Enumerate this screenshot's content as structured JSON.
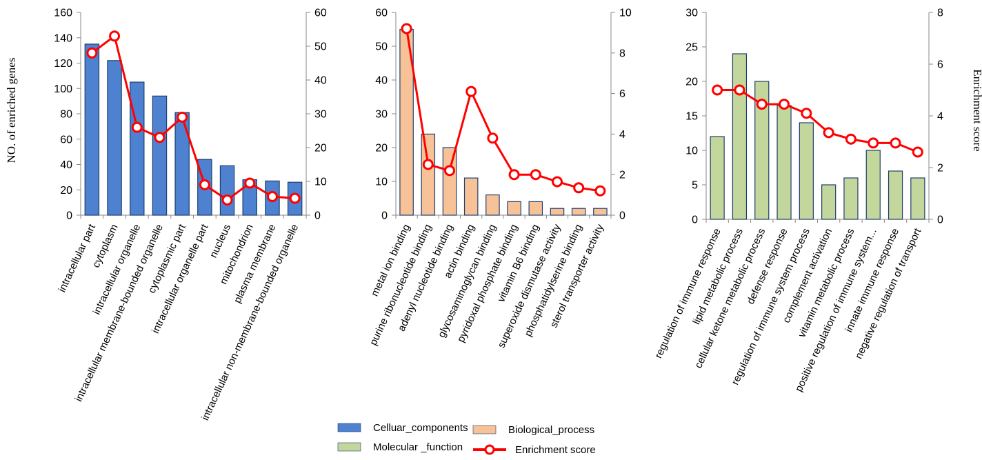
{
  "figure": {
    "ylabel_left": "NO. of enriched  genes",
    "ylabel_right": "Enrichment score"
  },
  "legend": [
    {
      "label": "Celluar_components",
      "kind": "bar",
      "color": "#4e81d0",
      "stroke": "#1f3f6f"
    },
    {
      "label": "Biological_process",
      "kind": "bar",
      "color": "#f8c298",
      "stroke": "#1f3f6f"
    },
    {
      "label": "Molecular _function",
      "kind": "bar",
      "color": "#c3d69b",
      "stroke": "#1f3f6f"
    },
    {
      "label": "Enrichment  score",
      "kind": "line",
      "color": "#ff0000"
    }
  ],
  "chart_data": [
    {
      "type": "bar",
      "series_name": "Celluar_components",
      "bar_color": "#4e81d0",
      "categories": [
        "intracellular part",
        "cytoplasm",
        "intracellular organelle",
        "intracellular membrane-bounded organelle",
        "cytoplasmic part",
        "intracellular organelle part",
        "nucleus",
        "mitochondrion",
        "plasma membrane",
        "intracellular non-membrane-bounded organelle"
      ],
      "values": [
        135,
        122,
        105,
        94,
        81,
        44,
        39,
        28,
        27,
        26
      ],
      "line_values": [
        48,
        53,
        26,
        23,
        29,
        9,
        4.5,
        9.5,
        5.5,
        5
      ],
      "ylim": [
        0,
        160
      ],
      "yticks": [
        0,
        20,
        40,
        60,
        80,
        100,
        120,
        140,
        160
      ],
      "y2lim": [
        0,
        60
      ],
      "y2ticks": [
        0,
        10,
        20,
        30,
        40,
        50,
        60
      ]
    },
    {
      "type": "bar",
      "series_name": "Biological_process",
      "bar_color": "#f8c298",
      "categories": [
        "metal ion binding",
        "purine ribonucleotide binding",
        "adenyl nucleotide binding",
        "actin binding",
        "glycosaminoglycan binding",
        "pyridoxal phosphate binding",
        "vitamin B6 binding",
        "superoxide dismutase activity",
        "phosphatidylserine binding",
        "sterol transporter activity"
      ],
      "values": [
        55,
        24,
        20,
        11,
        6,
        4,
        4,
        2,
        2,
        2
      ],
      "line_values": [
        9.2,
        2.5,
        2.2,
        6.1,
        3.8,
        2,
        2,
        1.65,
        1.35,
        1.2
      ],
      "ylim": [
        0,
        60
      ],
      "yticks": [
        0,
        10,
        20,
        30,
        40,
        50,
        60
      ],
      "y2lim": [
        0,
        10
      ],
      "y2ticks": [
        0,
        2,
        4,
        6,
        8,
        10
      ]
    },
    {
      "type": "bar",
      "series_name": "Molecular _function",
      "bar_color": "#c3d69b",
      "categories": [
        "regulation  of immune response",
        "lipid metabolic process",
        "cellular ketone metabolic  process",
        "defense response",
        "regulation  of immune system process",
        "complement activation",
        "vitamin metabolic process",
        "positive regulation of immune system...",
        "innate immune response",
        "negative regulation  of transport"
      ],
      "values": [
        12,
        24,
        20,
        16.5,
        14,
        5,
        6,
        10,
        7,
        6
      ],
      "line_values": [
        5,
        5,
        4.45,
        4.45,
        4.1,
        3.35,
        3.1,
        2.95,
        2.95,
        2.6
      ],
      "ylim": [
        0,
        30
      ],
      "yticks": [
        0,
        5,
        10,
        15,
        20,
        25,
        30
      ],
      "y2lim": [
        0,
        8
      ],
      "y2ticks": [
        0,
        2,
        4,
        6,
        8
      ]
    }
  ]
}
